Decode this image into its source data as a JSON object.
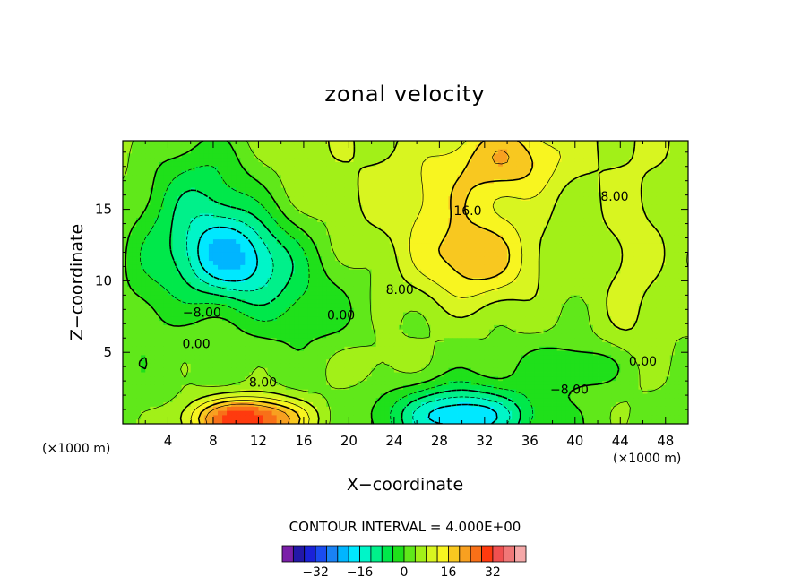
{
  "chart_data": {
    "type": "heatmap",
    "title": "zonal velocity",
    "xlabel": "X−coordinate",
    "ylabel": "Z−coordinate",
    "x_unit_left": "(×1000 m)",
    "x_unit_right": "(×1000 m)",
    "xlim": [
      0,
      50
    ],
    "ylim": [
      0,
      19.8
    ],
    "x_ticks": [
      4,
      8,
      12,
      16,
      20,
      24,
      28,
      32,
      36,
      40,
      44,
      48
    ],
    "y_ticks": [
      5,
      10,
      15
    ],
    "contour_interval_label": "CONTOUR INTERVAL = 4.000E+00",
    "contour_labels": [
      {
        "text": "16.0",
        "x": 30.5,
        "y": 14.9
      },
      {
        "text": "8.00",
        "x": 43.5,
        "y": 15.9
      },
      {
        "text": "8.00",
        "x": 24.5,
        "y": 9.4
      },
      {
        "text": "−8.00",
        "x": 7.0,
        "y": 7.8
      },
      {
        "text": "0.00",
        "x": 19.3,
        "y": 7.6
      },
      {
        "text": "0.00",
        "x": 6.5,
        "y": 5.6
      },
      {
        "text": "0.00",
        "x": 46.0,
        "y": 4.4
      },
      {
        "text": "8.00",
        "x": 12.4,
        "y": 2.9
      },
      {
        "text": "−8.00",
        "x": 39.5,
        "y": 2.4
      }
    ],
    "colorbar": {
      "levels": [
        -40,
        -36,
        -32,
        -28,
        -24,
        -20,
        -16,
        -12,
        -8,
        -4,
        0,
        4,
        8,
        12,
        16,
        20,
        24,
        28,
        32,
        36,
        40
      ],
      "colors": [
        "#7a1fa8",
        "#2318a8",
        "#1a22d8",
        "#1a4cf0",
        "#1a82f5",
        "#00b5ff",
        "#00e8ff",
        "#00f5c8",
        "#00f08a",
        "#00e84a",
        "#1fe01a",
        "#60e81a",
        "#a2f018",
        "#d8f520",
        "#f8f520",
        "#f8c820",
        "#f8a020",
        "#f87018",
        "#ff3a0e",
        "#f05050",
        "#f07878",
        "#f5a8a8"
      ],
      "tick_values": [
        -32,
        -16,
        0,
        16,
        32
      ],
      "tick_labels": [
        "−32",
        "−16",
        "0",
        "16",
        "32"
      ]
    },
    "field_features": [
      {
        "kind": "max",
        "x": 11,
        "y": 0.3,
        "value": 31
      },
      {
        "kind": "max",
        "x": 31,
        "y": 11.5,
        "value": 21
      },
      {
        "kind": "max",
        "x": 34,
        "y": 18.5,
        "value": 20
      },
      {
        "kind": "min",
        "x": 10,
        "y": 11,
        "value": -19
      },
      {
        "kind": "min",
        "x": 30,
        "y": 0.3,
        "value": -19
      },
      {
        "kind": "min",
        "x": 5,
        "y": 15,
        "value": -12
      }
    ]
  }
}
